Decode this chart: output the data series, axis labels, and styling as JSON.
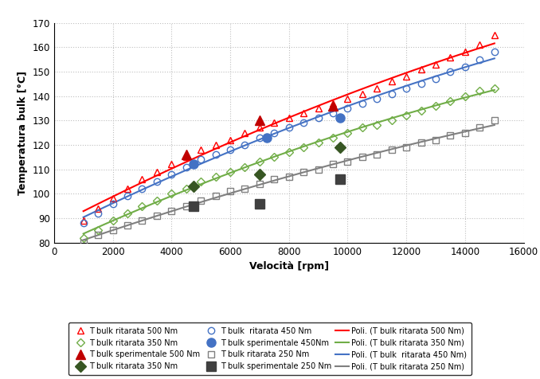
{
  "title": "",
  "xlabel": "Velocità [rpm]",
  "ylabel": "Temperatura bulk [°C]",
  "xlim": [
    0,
    16000
  ],
  "ylim": [
    80,
    170
  ],
  "xticks": [
    0,
    2000,
    4000,
    6000,
    8000,
    10000,
    12000,
    14000,
    16000
  ],
  "yticks": [
    80,
    90,
    100,
    110,
    120,
    130,
    140,
    150,
    160,
    170
  ],
  "ritarata_500": {
    "x": [
      1000,
      1500,
      2000,
      2500,
      3000,
      3500,
      4000,
      4500,
      5000,
      5500,
      6000,
      6500,
      7000,
      7500,
      8000,
      8500,
      9000,
      9500,
      10000,
      10500,
      11000,
      11500,
      12000,
      12500,
      13000,
      13500,
      14000,
      14500,
      15000
    ],
    "y": [
      89,
      94,
      98,
      102,
      106,
      109,
      112,
      115,
      118,
      120,
      122,
      125,
      127,
      129,
      131,
      133,
      135,
      137,
      139,
      141,
      143,
      146,
      148,
      151,
      153,
      156,
      158,
      161,
      165
    ],
    "color": "#FF0000",
    "marker": "^",
    "fillstyle": "none",
    "markersize": 6
  },
  "ritarata_450": {
    "x": [
      1000,
      1500,
      2000,
      2500,
      3000,
      3500,
      4000,
      4500,
      5000,
      5500,
      6000,
      6500,
      7000,
      7500,
      8000,
      8500,
      9000,
      9500,
      10000,
      10500,
      11000,
      11500,
      12000,
      12500,
      13000,
      13500,
      14000,
      14500,
      15000
    ],
    "y": [
      88,
      92,
      96,
      99,
      102,
      105,
      108,
      111,
      114,
      116,
      118,
      120,
      123,
      125,
      127,
      129,
      131,
      133,
      135,
      137,
      139,
      141,
      143,
      145,
      147,
      150,
      152,
      155,
      158
    ],
    "color": "#4472C4",
    "marker": "o",
    "fillstyle": "none",
    "markersize": 6
  },
  "ritarata_350": {
    "x": [
      1000,
      1500,
      2000,
      2500,
      3000,
      3500,
      4000,
      4500,
      5000,
      5500,
      6000,
      6500,
      7000,
      7500,
      8000,
      8500,
      9000,
      9500,
      10000,
      10500,
      11000,
      11500,
      12000,
      12500,
      13000,
      13500,
      14000,
      14500,
      15000
    ],
    "y": [
      82,
      85,
      89,
      92,
      95,
      97,
      100,
      102,
      105,
      107,
      109,
      111,
      113,
      115,
      117,
      119,
      121,
      123,
      125,
      127,
      128,
      130,
      132,
      134,
      136,
      138,
      140,
      142,
      143
    ],
    "color": "#70AD47",
    "marker": "D",
    "fillstyle": "none",
    "markersize": 5
  },
  "ritarata_250": {
    "x": [
      1000,
      1500,
      2000,
      2500,
      3000,
      3500,
      4000,
      4500,
      5000,
      5500,
      6000,
      6500,
      7000,
      7500,
      8000,
      8500,
      9000,
      9500,
      10000,
      10500,
      11000,
      11500,
      12000,
      12500,
      13000,
      13500,
      14000,
      14500,
      15000
    ],
    "y": [
      80,
      83,
      85,
      87,
      89,
      91,
      93,
      95,
      97,
      99,
      101,
      102,
      104,
      106,
      107,
      109,
      110,
      112,
      113,
      115,
      116,
      118,
      119,
      121,
      122,
      124,
      125,
      127,
      130
    ],
    "color": "#808080",
    "marker": "s",
    "fillstyle": "none",
    "markersize": 6
  },
  "sperimentale_500": {
    "x": [
      4500,
      7000,
      9500
    ],
    "y": [
      116,
      130,
      136
    ],
    "color": "#C00000",
    "marker": "^",
    "markersize": 8
  },
  "sperimentale_450": {
    "x": [
      4750,
      7250,
      9750
    ],
    "y": [
      112,
      123,
      131
    ],
    "color": "#4472C4",
    "marker": "o",
    "markersize": 8
  },
  "sperimentale_350": {
    "x": [
      4750,
      7000,
      9750
    ],
    "y": [
      103,
      108,
      119
    ],
    "color": "#375623",
    "marker": "D",
    "markersize": 7
  },
  "sperimentale_250": {
    "x": [
      4750,
      7000,
      9750
    ],
    "y": [
      95,
      96,
      106
    ],
    "color": "#404040",
    "marker": "s",
    "markersize": 8
  },
  "poly_500": {
    "color": "#FF0000",
    "lw": 1.5
  },
  "poly_450": {
    "color": "#4472C4",
    "lw": 1.5
  },
  "poly_350": {
    "color": "#70AD47",
    "lw": 1.5
  },
  "poly_250": {
    "color": "#808080",
    "lw": 1.5
  },
  "bg_color": "#FFFFFF",
  "grid_color": "#BFBFBF",
  "figsize": [
    6.78,
    4.76
  ],
  "dpi": 100
}
